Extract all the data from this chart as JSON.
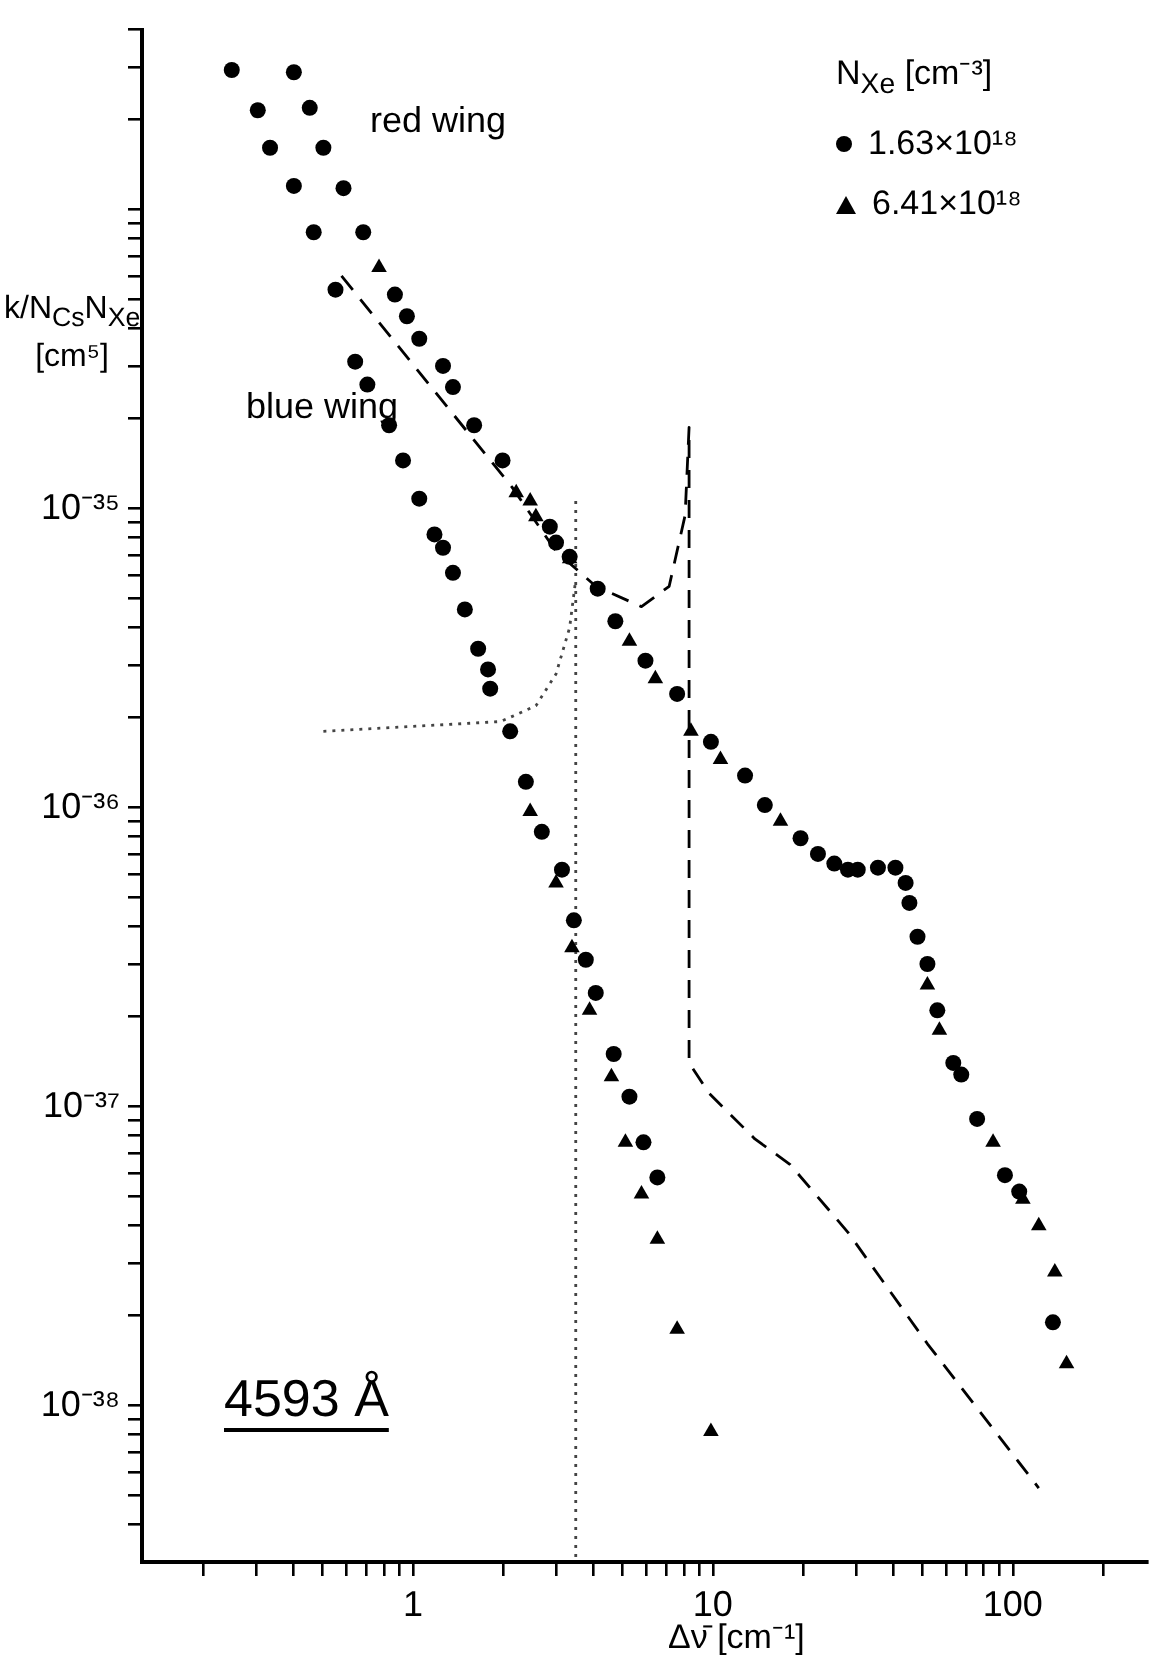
{
  "chart_data": {
    "type": "scatter",
    "xlabel": "Δν̄ [cm⁻¹]",
    "ylabel": "k/N$_{Cs}$N$_{Xe}$ [cm⁵]",
    "legend_title": "N$_{Xe}$ [cm⁻³]",
    "legend": "top right",
    "log": "xy",
    "grid": false,
    "xlim": [
      0.125,
      280
    ],
    "xticks": [
      {
        "value": 0.2,
        "label": null
      },
      {
        "value": 0.3,
        "label": null
      },
      {
        "value": 0.4,
        "label": null
      },
      {
        "value": 0.5,
        "label": null
      },
      {
        "value": 0.6,
        "label": null
      },
      {
        "value": 0.7,
        "label": null
      },
      {
        "value": 0.8,
        "label": null
      },
      {
        "value": 0.9,
        "label": null
      },
      1,
      {
        "value": 2,
        "label": null
      },
      {
        "value": 3,
        "label": null
      },
      {
        "value": 4,
        "label": null
      },
      {
        "value": 5,
        "label": null
      },
      {
        "value": 6,
        "label": null
      },
      {
        "value": 7,
        "label": null
      },
      {
        "value": 8,
        "label": null
      },
      {
        "value": 9,
        "label": null
      },
      10,
      {
        "value": 20,
        "label": null
      },
      {
        "value": 30,
        "label": null
      },
      {
        "value": 40,
        "label": null
      },
      {
        "value": 50,
        "label": null
      },
      {
        "value": 60,
        "label": null
      },
      {
        "value": 70,
        "label": null
      },
      {
        "value": 80,
        "label": null
      },
      {
        "value": 90,
        "label": null
      },
      100,
      {
        "value": 200,
        "label": null
      }
    ],
    "ylim": [
      3e-39,
      4e-34
    ],
    "yticks": [
      {
        "value": 4e-39,
        "label": null
      },
      {
        "value": 5e-39,
        "label": null
      },
      {
        "value": 6e-39,
        "label": null
      },
      {
        "value": 7e-39,
        "label": null
      },
      {
        "value": 8e-39,
        "label": null
      },
      {
        "value": 9e-39,
        "label": null
      },
      {
        "value": 1e-38,
        "label": "10⁻³⁸"
      },
      {
        "value": 2e-38,
        "label": null
      },
      {
        "value": 3e-38,
        "label": null
      },
      {
        "value": 4e-38,
        "label": null
      },
      {
        "value": 5e-38,
        "label": null
      },
      {
        "value": 6e-38,
        "label": null
      },
      {
        "value": 7e-38,
        "label": null
      },
      {
        "value": 8e-38,
        "label": null
      },
      {
        "value": 9e-38,
        "label": null
      },
      {
        "value": 1e-37,
        "label": "10⁻³⁷"
      },
      {
        "value": 2e-37,
        "label": null
      },
      {
        "value": 3e-37,
        "label": null
      },
      {
        "value": 4e-37,
        "label": null
      },
      {
        "value": 5e-37,
        "label": null
      },
      {
        "value": 6e-37,
        "label": null
      },
      {
        "value": 7e-37,
        "label": null
      },
      {
        "value": 8e-37,
        "label": null
      },
      {
        "value": 9e-37,
        "label": null
      },
      {
        "value": 1e-36,
        "label": "10⁻³⁶"
      },
      {
        "value": 2e-36,
        "label": null
      },
      {
        "value": 3e-36,
        "label": null
      },
      {
        "value": 4e-36,
        "label": null
      },
      {
        "value": 5e-36,
        "label": null
      },
      {
        "value": 6e-36,
        "label": null
      },
      {
        "value": 7e-36,
        "label": null
      },
      {
        "value": 8e-36,
        "label": null
      },
      {
        "value": 9e-36,
        "label": null
      },
      {
        "value": 1e-35,
        "label": "10⁻³⁵"
      },
      {
        "value": 2e-35,
        "label": null
      },
      {
        "value": 3e-35,
        "label": null
      },
      {
        "value": 4e-35,
        "label": null
      },
      {
        "value": 5e-35,
        "label": null
      },
      {
        "value": 6e-35,
        "label": null
      },
      {
        "value": 7e-35,
        "label": null
      },
      {
        "value": 8e-35,
        "label": null
      },
      {
        "value": 9e-35,
        "label": null
      },
      {
        "value": 1e-34,
        "label": null
      },
      {
        "value": 2e-34,
        "label": null
      },
      {
        "value": 3e-34,
        "label": null
      },
      {
        "value": 4e-34,
        "label": null
      }
    ],
    "annotations": [
      "red wing",
      "blue wing",
      "4593 Å"
    ],
    "series": [
      {
        "name": "1.63×10¹⁸",
        "color": "#000000",
        "marker": "circle",
        "x": [
          0.249,
          0.304,
          0.334,
          0.401,
          0.467,
          0.552,
          0.642,
          0.705,
          0.833,
          0.927,
          1.05,
          1.18,
          1.26,
          1.36,
          1.49,
          1.65,
          1.78,
          1.81,
          2.11,
          2.38,
          2.69,
          3.14,
          3.44,
          3.77,
          4.07,
          4.67,
          5.27,
          5.87,
          6.53,
          0.401,
          0.453,
          0.503,
          0.587,
          0.683,
          0.871,
          0.955,
          1.05,
          1.26,
          1.36,
          1.6,
          1.99,
          2.86,
          3.0,
          3.33,
          4.13,
          4.73,
          5.96,
          7.6,
          9.85,
          12.8,
          14.9,
          19.6,
          22.4,
          25.4,
          28.2,
          30.4,
          35.5,
          40.6,
          43.9,
          45.2,
          48.1,
          51.9,
          56.0,
          63.3,
          67.3,
          76.0,
          94.1,
          105,
          136
        ],
        "values": [
          2.93e-34,
          2.15e-34,
          1.61e-34,
          1.2e-34,
          8.4e-35,
          5.4e-35,
          3.1e-35,
          2.6e-35,
          1.9e-35,
          1.45e-35,
          1.08e-35,
          8.2e-36,
          7.4e-36,
          6.1e-36,
          4.6e-36,
          3.4e-36,
          2.9e-36,
          2.5e-36,
          1.8e-36,
          1.22e-36,
          8.3e-37,
          6.2e-37,
          4.2e-37,
          3.1e-37,
          2.4e-37,
          1.5e-37,
          1.08e-37,
          7.6e-38,
          5.8e-38,
          2.88e-34,
          2.19e-34,
          1.61e-34,
          1.18e-34,
          8.4e-35,
          5.2e-35,
          4.4e-35,
          3.7e-35,
          3e-35,
          2.55e-35,
          1.9e-35,
          1.45e-35,
          8.7e-36,
          7.7e-36,
          6.9e-36,
          5.4e-36,
          4.2e-36,
          3.1e-36,
          2.4e-36,
          1.66e-36,
          1.28e-36,
          1.02e-36,
          7.9e-37,
          7e-37,
          6.5e-37,
          6.2e-37,
          6.2e-37,
          6.3e-37,
          6.3e-37,
          5.6e-37,
          4.8e-37,
          3.7e-37,
          3e-37,
          2.1e-37,
          1.4e-37,
          1.28e-37,
          9.1e-38,
          5.9e-38,
          5.2e-38,
          1.9e-38
        ]
      },
      {
        "name": "6.41×10¹⁸",
        "color": "#000000",
        "marker": "triangle",
        "x": [
          0.771,
          2.21,
          2.46,
          2.57,
          3.33,
          5.27,
          6.43,
          8.45,
          10.6,
          16.8,
          51.9,
          56.9,
          85.9,
          108,
          122,
          138,
          151,
          2.46,
          3.0,
          3.39,
          3.88,
          4.59,
          5.11,
          5.78,
          6.53,
          7.6,
          9.85
        ],
        "values": [
          6.4e-35,
          1.13e-35,
          1.06e-35,
          9.4e-36,
          6.8e-36,
          3.6e-36,
          2.7e-36,
          1.8e-36,
          1.45e-36,
          9e-37,
          2.55e-37,
          1.8e-37,
          7.6e-38,
          4.9e-38,
          4e-38,
          2.8e-38,
          1.38e-38,
          9.7e-37,
          5.6e-37,
          3.4e-37,
          2.1e-37,
          1.26e-37,
          7.6e-38,
          5.1e-38,
          3.6e-38,
          1.8e-38,
          8.2e-39
        ]
      },
      {
        "type": "line",
        "color": "#000000",
        "marker": "none",
        "line_style": "dashed",
        "x": [
          0.578,
          2.14,
          3.0,
          4.07,
          5.78,
          7.15,
          8.08,
          8.33,
          8.33,
          9.7,
          13.8,
          18.1,
          28.2,
          51.9,
          122
        ],
        "values": [
          6e-35,
          1.18e-35,
          7.2e-36,
          5.5e-36,
          4.7e-36,
          5.5e-36,
          9.5e-36,
          1.87e-35,
          1.4e-37,
          1.11e-37,
          7.8e-38,
          6.4e-38,
          3.8e-38,
          1.61e-38,
          5.3e-39
        ]
      },
      {
        "type": "line",
        "color": "#444444",
        "marker": "none",
        "line_style": "dotted",
        "x": [
          0.503,
          1.96,
          2.57,
          3.0,
          3.33,
          3.49
        ],
        "values": [
          1.8e-36,
          1.94e-36,
          2.19e-36,
          2.8e-36,
          4e-36,
          5.8e-36
        ]
      },
      {
        "type": "line",
        "color": "#444444",
        "marker": "none",
        "line_style": "dotted",
        "x": [
          3.49,
          3.49
        ],
        "values": [
          1.06e-35,
          3e-39
        ]
      }
    ]
  }
}
